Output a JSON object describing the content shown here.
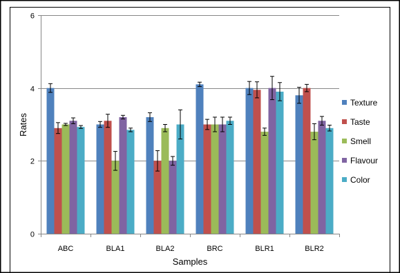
{
  "chart_data": {
    "type": "bar",
    "title": "",
    "xlabel": "Samples",
    "ylabel": "Rates",
    "ylim": [
      0,
      6
    ],
    "yticks": [
      0,
      2,
      4,
      6
    ],
    "grid": true,
    "legend_position": "right",
    "categories": [
      "ABC",
      "BLA1",
      "BLA2",
      "BRC",
      "BLR1",
      "BLR2"
    ],
    "series": [
      {
        "name": "Texture",
        "color": "#4F81BD",
        "values": [
          4.0,
          3.0,
          3.2,
          4.1,
          4.0,
          3.8
        ],
        "errors": [
          0.12,
          0.08,
          0.12,
          0.06,
          0.18,
          0.22
        ]
      },
      {
        "name": "Taste",
        "color": "#C0504D",
        "values": [
          2.9,
          3.1,
          2.0,
          3.0,
          3.95,
          4.0
        ],
        "errors": [
          0.15,
          0.18,
          0.28,
          0.14,
          0.22,
          0.1
        ]
      },
      {
        "name": "Smell",
        "color": "#9BBB59",
        "values": [
          3.0,
          2.0,
          2.9,
          3.0,
          2.8,
          2.8
        ],
        "errors": [
          0.03,
          0.26,
          0.1,
          0.2,
          0.1,
          0.22
        ]
      },
      {
        "name": "Flavour",
        "color": "#8064A2",
        "values": [
          3.1,
          3.2,
          2.0,
          3.0,
          4.0,
          3.1
        ],
        "errors": [
          0.08,
          0.05,
          0.12,
          0.2,
          0.32,
          0.12
        ]
      },
      {
        "name": "Color",
        "color": "#4BACC6",
        "values": [
          2.93,
          2.85,
          3.0,
          3.1,
          3.9,
          2.9
        ],
        "errors": [
          0.04,
          0.05,
          0.4,
          0.1,
          0.25,
          0.08
        ]
      }
    ]
  }
}
